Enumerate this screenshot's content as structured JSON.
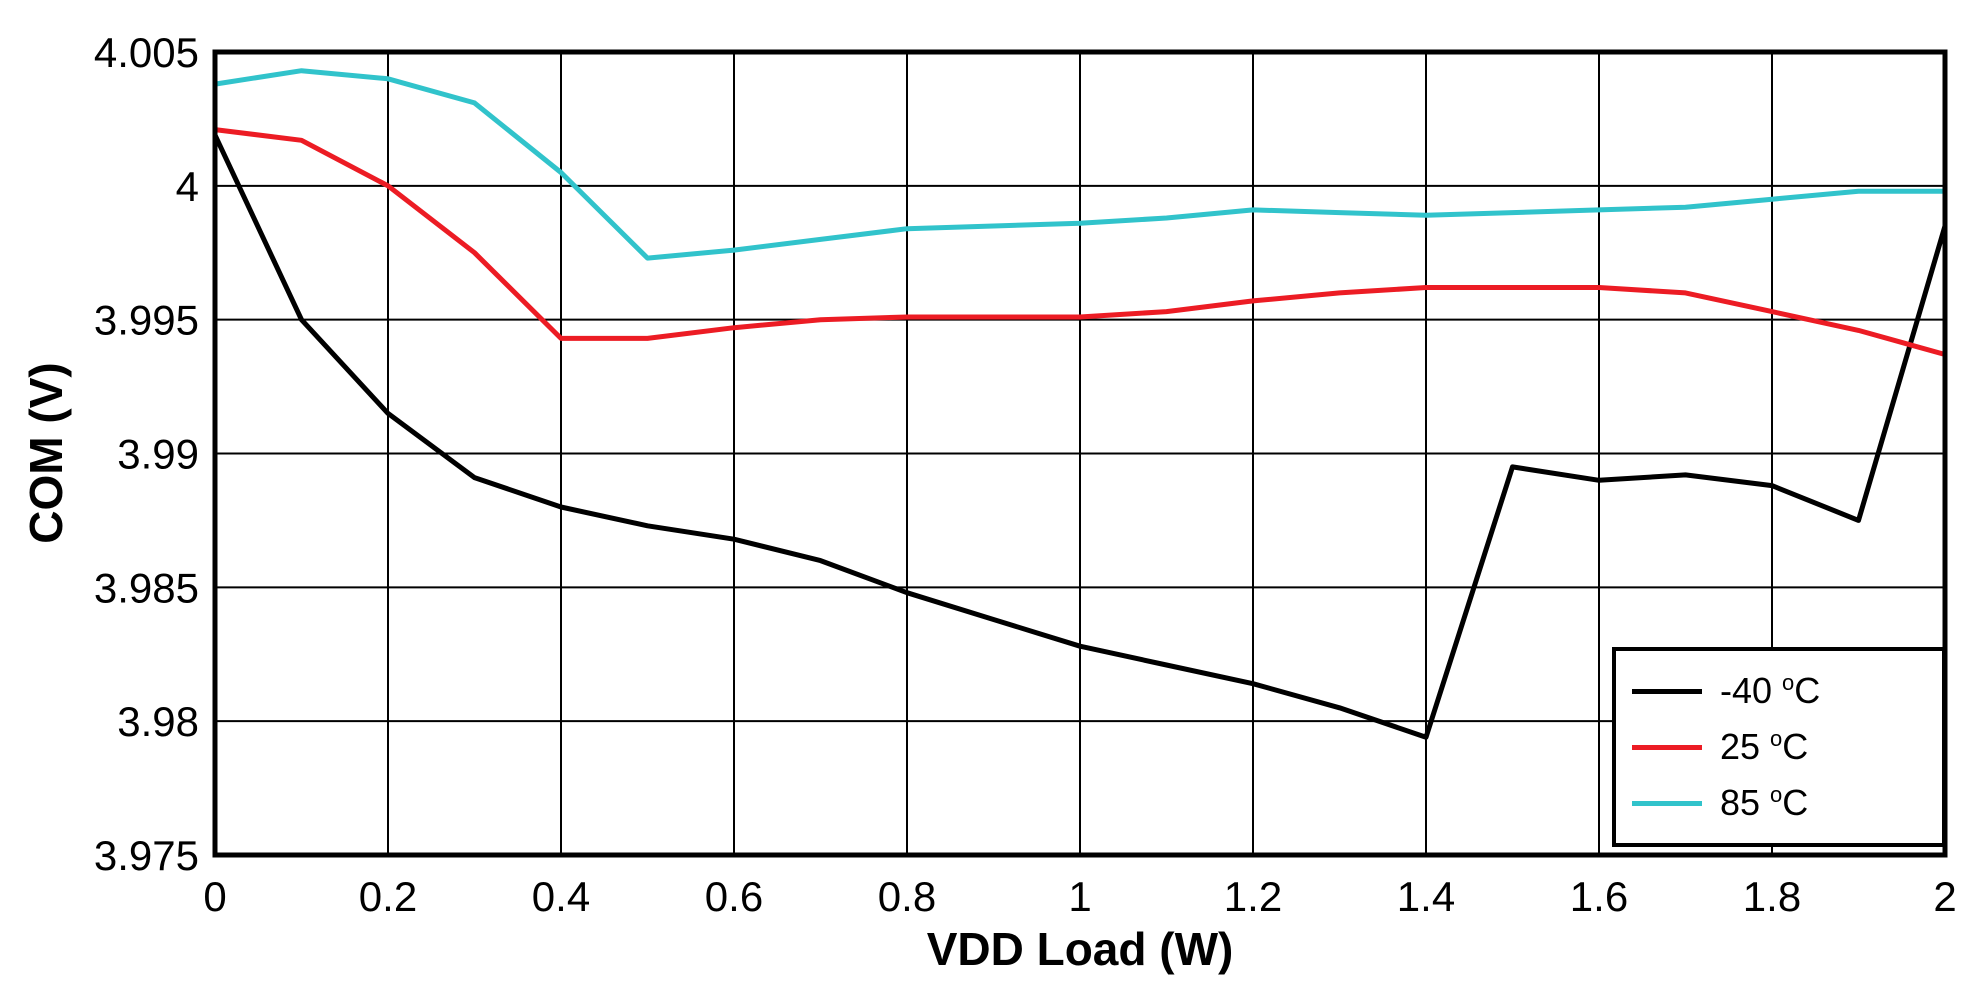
{
  "chart_data": {
    "type": "line",
    "title": "",
    "xlabel": "VDD Load (W)",
    "ylabel": "COM (V)",
    "xlim": [
      0,
      2
    ],
    "ylim": [
      3.975,
      4.005
    ],
    "grid": true,
    "legend_position": "bottom-right",
    "xtick_values": [
      0,
      0.2,
      0.4,
      0.6,
      0.8,
      1,
      1.2,
      1.4,
      1.6,
      1.8,
      2
    ],
    "xtick_labels": [
      "0",
      "0.2",
      "0.4",
      "0.6",
      "0.8",
      "1",
      "1.2",
      "1.4",
      "1.6",
      "1.8",
      "2"
    ],
    "ytick_values": [
      3.975,
      3.98,
      3.985,
      3.99,
      3.995,
      4,
      4.005
    ],
    "ytick_labels": [
      "3.975",
      "3.98",
      "3.985",
      "3.99",
      "3.995",
      "4",
      "4.005"
    ],
    "x": [
      0,
      0.1,
      0.2,
      0.3,
      0.4,
      0.5,
      0.6,
      0.7,
      0.8,
      0.9,
      1.0,
      1.1,
      1.2,
      1.3,
      1.4,
      1.5,
      1.6,
      1.7,
      1.8,
      1.9,
      2.0
    ],
    "series": [
      {
        "name": "-40 °C",
        "color": "#000000",
        "values": [
          4.0019,
          3.995,
          3.9915,
          3.9891,
          3.988,
          3.9873,
          3.9868,
          3.986,
          3.9848,
          3.9838,
          3.9828,
          3.9821,
          3.9814,
          3.9805,
          3.9794,
          3.9895,
          3.989,
          3.9892,
          3.9888,
          3.9875,
          3.9985
        ]
      },
      {
        "name": "25 °C",
        "color": "#ec1c24",
        "values": [
          4.0021,
          4.0017,
          4.0,
          3.9975,
          3.9943,
          3.9943,
          3.9947,
          3.995,
          3.9951,
          3.9951,
          3.9951,
          3.9953,
          3.9957,
          3.996,
          3.9962,
          3.9962,
          3.9962,
          3.996,
          3.9953,
          3.9946,
          3.9937
        ]
      },
      {
        "name": "85 °C",
        "color": "#31c3cb",
        "values": [
          4.0038,
          4.0043,
          4.004,
          4.0031,
          4.0005,
          3.9973,
          3.9976,
          3.998,
          3.9984,
          3.9985,
          3.9986,
          3.9988,
          3.9991,
          3.999,
          3.9989,
          3.999,
          3.9991,
          3.9992,
          3.9995,
          3.9998,
          3.9998
        ]
      }
    ]
  }
}
